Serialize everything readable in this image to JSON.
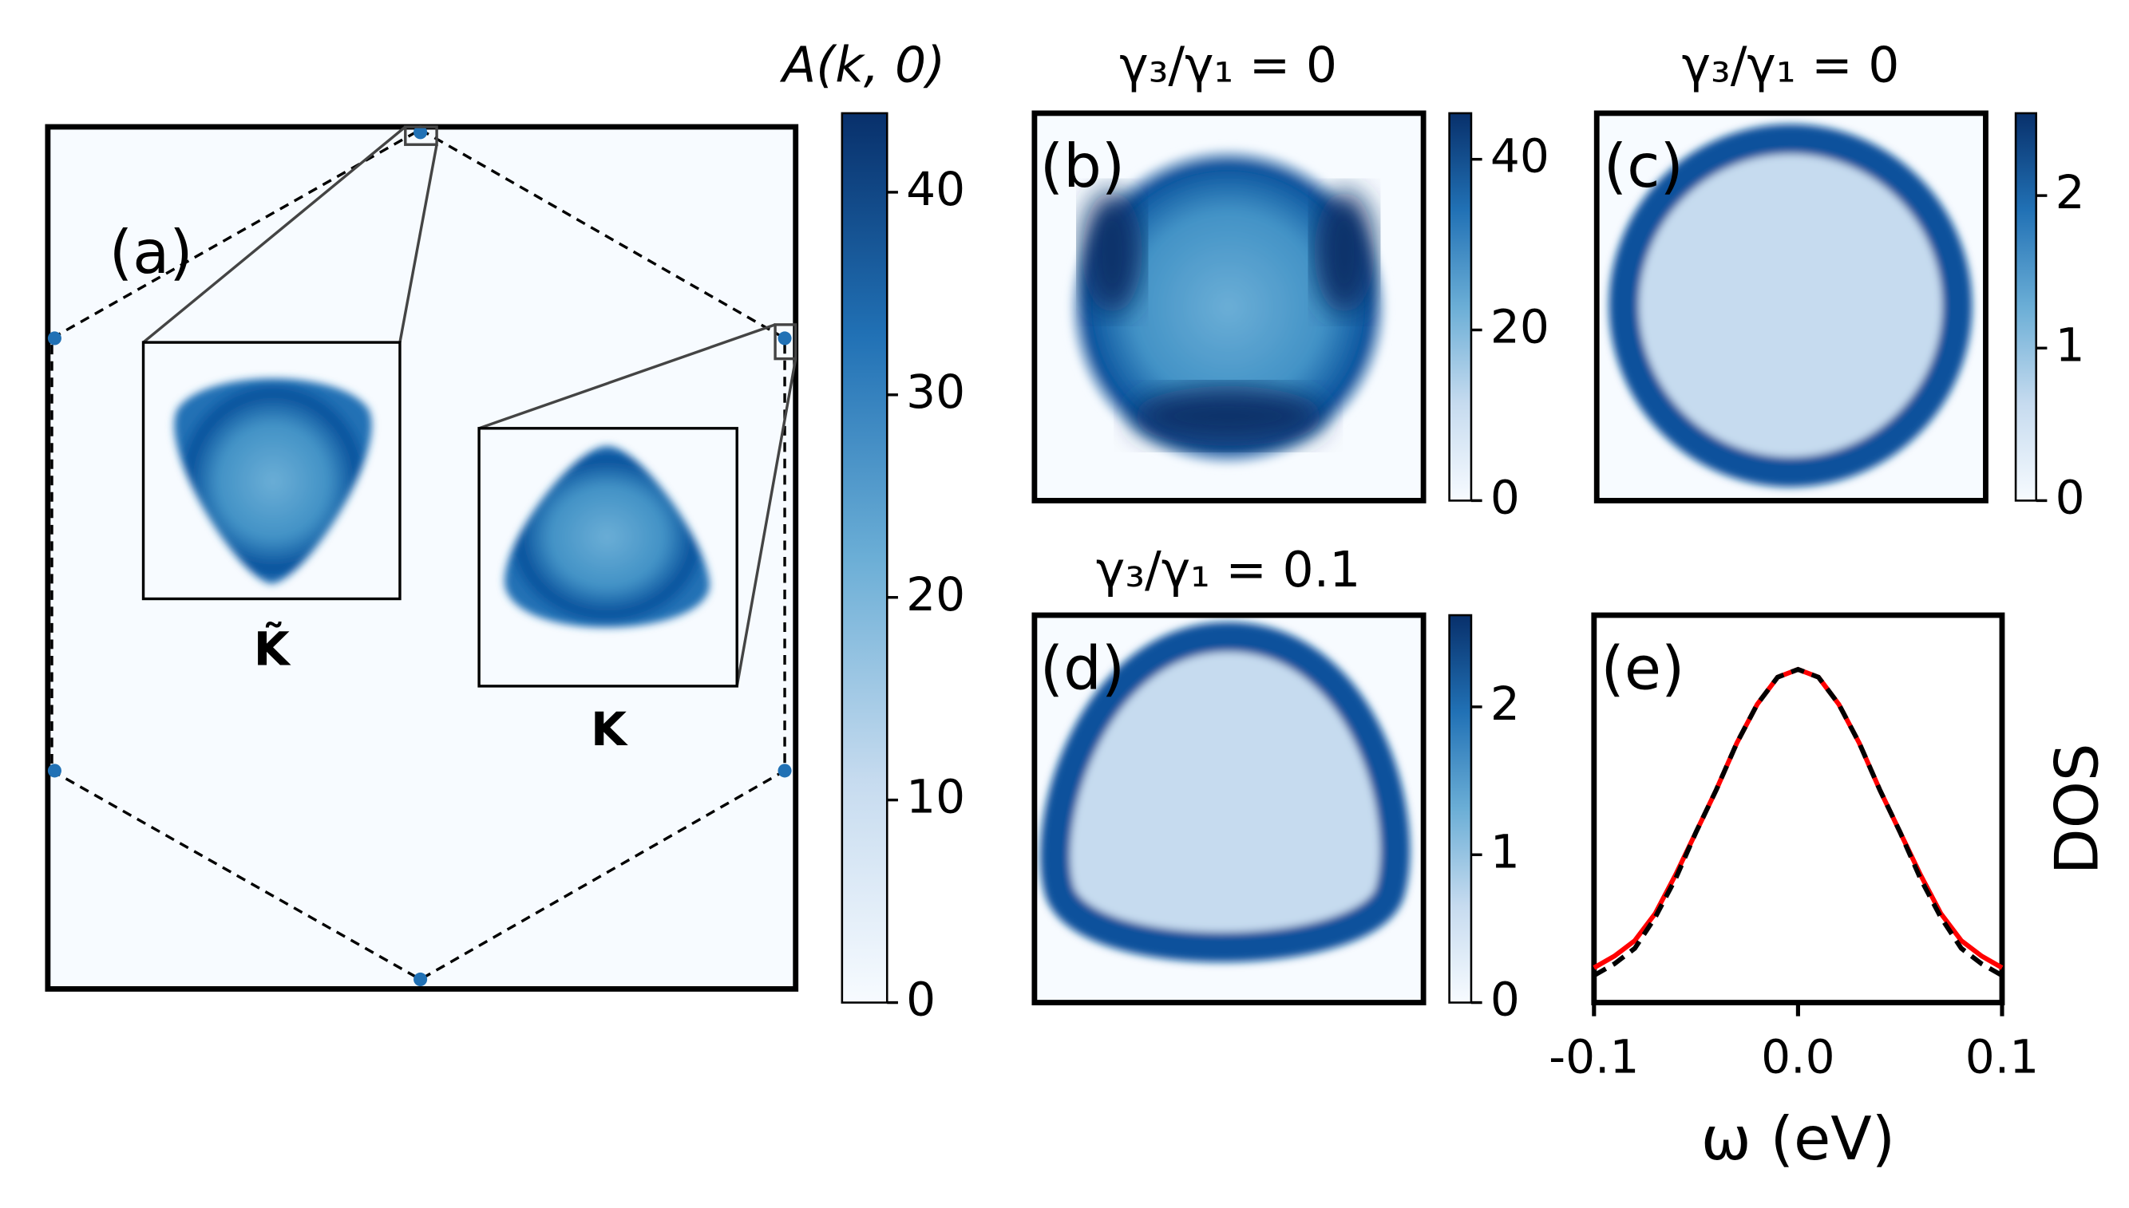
{
  "chart_data": [
    {
      "type": "heatmap",
      "title": "A(k, 0)",
      "panel_label": "(a)",
      "annotations": [
        "K̃",
        "K"
      ],
      "clim": [
        0,
        43.9
      ],
      "cticks": [
        0,
        10,
        20,
        30,
        40
      ],
      "colormap": "Blues"
    },
    {
      "type": "heatmap",
      "title": "γ₃/γ₁ = 0",
      "panel_label": "(b)",
      "clim": [
        0,
        45.4
      ],
      "cticks": [
        0,
        20,
        40
      ],
      "colormap": "Blues"
    },
    {
      "type": "heatmap",
      "title": "γ₃/γ₁ = 0",
      "panel_label": "(c)",
      "clim": [
        0,
        2.54
      ],
      "cticks": [
        0,
        1,
        2
      ],
      "colormap": "Blues"
    },
    {
      "type": "heatmap",
      "title": "γ₃/γ₁ = 0.1",
      "panel_label": "(d)",
      "clim": [
        0,
        2.62
      ],
      "cticks": [
        0,
        1,
        2
      ],
      "colormap": "Blues"
    },
    {
      "type": "line",
      "panel_label": "(e)",
      "xlabel": "ω (eV)",
      "ylabel": "DOS",
      "x": [
        -0.1,
        -0.09,
        -0.08,
        -0.07,
        -0.06,
        -0.05,
        -0.04,
        -0.03,
        -0.02,
        -0.01,
        0,
        0.01,
        0.02,
        0.03,
        0.04,
        0.05,
        0.06,
        0.07,
        0.08,
        0.09,
        0.1
      ],
      "xlim": [
        -0.1,
        0.1
      ],
      "xticks": [
        -0.1,
        {
          "value": 0,
          "label": "0.0"
        },
        0.1
      ],
      "ylim": [
        0,
        1
      ],
      "series": [
        {
          "color": "#ff0000",
          "dash": false,
          "values": [
            0.09,
            0.12,
            0.16,
            0.23,
            0.33,
            0.44,
            0.55,
            0.67,
            0.77,
            0.84,
            0.86,
            0.84,
            0.77,
            0.67,
            0.55,
            0.44,
            0.33,
            0.23,
            0.16,
            0.12,
            0.09
          ]
        },
        {
          "color": "#000000",
          "dash": true,
          "values": [
            0.07,
            0.1,
            0.14,
            0.22,
            0.32,
            0.44,
            0.55,
            0.67,
            0.77,
            0.84,
            0.86,
            0.84,
            0.77,
            0.67,
            0.55,
            0.44,
            0.32,
            0.22,
            0.14,
            0.1,
            0.07
          ]
        }
      ]
    }
  ]
}
